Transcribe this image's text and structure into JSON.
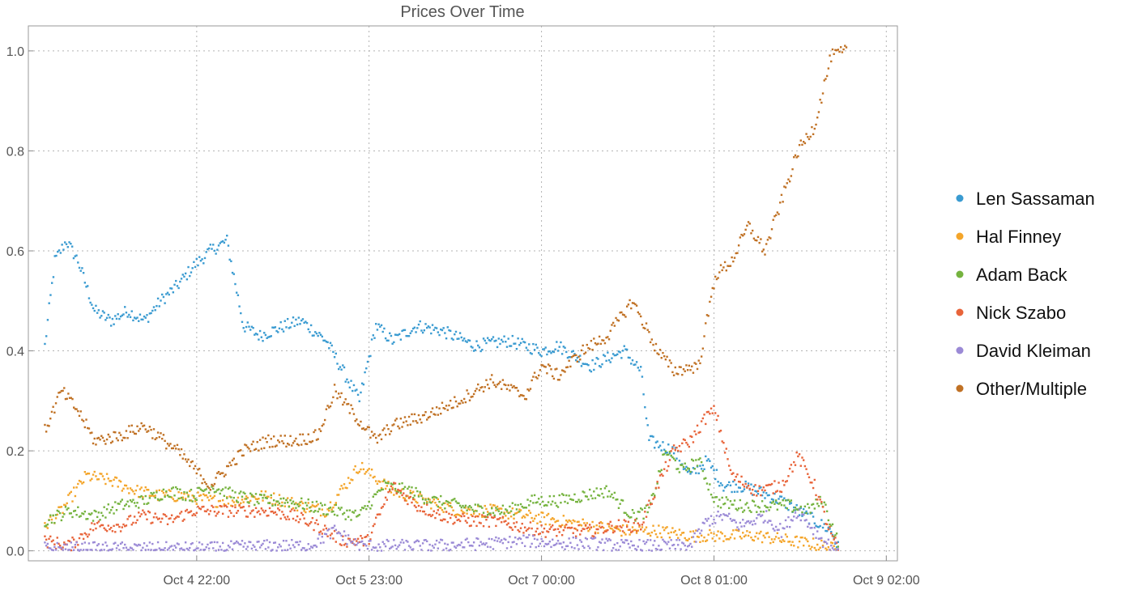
{
  "chart_data": {
    "type": "scatter",
    "title": "Prices Over Time",
    "xlabel": "",
    "ylabel": "",
    "x_range": [
      -0.1,
      4.85
    ],
    "x_unit": "days since Oct 4 00:00",
    "ylim": [
      -0.02,
      1.05
    ],
    "grid": true,
    "legend_position": "right",
    "x_ticks": [
      {
        "label": "Oct 4 22:00",
        "value": 0.917
      },
      {
        "label": "Oct 5 23:00",
        "value": 1.958
      },
      {
        "label": "Oct 7 00:00",
        "value": 3.0
      },
      {
        "label": "Oct 8 01:00",
        "value": 4.042
      },
      {
        "label": "Oct 9 02:00",
        "value": 5.083
      }
    ],
    "y_ticks": [
      "0.0",
      "0.2",
      "0.4",
      "0.6",
      "0.8",
      "1.0"
    ],
    "y_tick_values": [
      0.0,
      0.2,
      0.4,
      0.6,
      0.8,
      1.0
    ],
    "series": [
      {
        "name": "Len Sassaman",
        "color": "#3a9bd1",
        "x": [
          0.0,
          0.06,
          0.13,
          0.2,
          0.3,
          0.4,
          0.5,
          0.6,
          0.7,
          0.8,
          0.9,
          1.0,
          1.1,
          1.2,
          1.3,
          1.45,
          1.55,
          1.7,
          1.8,
          1.9,
          2.0,
          2.1,
          2.25,
          2.4,
          2.6,
          2.8,
          3.0,
          3.1,
          3.3,
          3.5,
          3.6,
          3.65,
          3.8,
          3.9,
          4.0,
          4.1,
          4.2,
          4.3,
          4.45,
          4.6,
          4.75,
          4.8
        ],
        "y": [
          0.41,
          0.58,
          0.62,
          0.58,
          0.48,
          0.46,
          0.48,
          0.46,
          0.5,
          0.53,
          0.57,
          0.6,
          0.62,
          0.45,
          0.43,
          0.45,
          0.46,
          0.42,
          0.36,
          0.3,
          0.45,
          0.42,
          0.45,
          0.44,
          0.41,
          0.42,
          0.4,
          0.41,
          0.37,
          0.4,
          0.36,
          0.22,
          0.2,
          0.15,
          0.18,
          0.13,
          0.13,
          0.12,
          0.1,
          0.07,
          0.04,
          0.0
        ]
      },
      {
        "name": "Hal Finney",
        "color": "#f4a52a",
        "x": [
          0.0,
          0.1,
          0.25,
          0.4,
          0.55,
          0.7,
          0.85,
          1.0,
          1.15,
          1.3,
          1.45,
          1.55,
          1.7,
          1.9,
          2.1,
          2.3,
          2.5,
          2.7,
          2.9,
          3.1,
          3.3,
          3.5,
          3.7,
          3.9,
          4.1,
          4.3,
          4.5,
          4.7,
          4.8
        ],
        "y": [
          0.05,
          0.08,
          0.15,
          0.14,
          0.12,
          0.11,
          0.11,
          0.1,
          0.1,
          0.11,
          0.1,
          0.09,
          0.08,
          0.17,
          0.12,
          0.1,
          0.08,
          0.08,
          0.07,
          0.06,
          0.05,
          0.04,
          0.04,
          0.03,
          0.03,
          0.03,
          0.02,
          0.01,
          0.0
        ]
      },
      {
        "name": "Adam Back",
        "color": "#75b33f",
        "x": [
          0.0,
          0.15,
          0.3,
          0.45,
          0.6,
          0.75,
          0.9,
          1.0,
          1.15,
          1.3,
          1.45,
          1.6,
          1.75,
          1.9,
          2.05,
          2.2,
          2.35,
          2.5,
          2.65,
          2.8,
          2.95,
          3.1,
          3.25,
          3.4,
          3.55,
          3.65,
          3.75,
          3.85,
          3.95,
          4.05,
          4.2,
          4.35,
          4.5,
          4.6,
          4.7,
          4.8
        ],
        "y": [
          0.06,
          0.08,
          0.07,
          0.09,
          0.1,
          0.12,
          0.11,
          0.13,
          0.11,
          0.1,
          0.1,
          0.09,
          0.08,
          0.07,
          0.13,
          0.12,
          0.1,
          0.09,
          0.08,
          0.08,
          0.1,
          0.1,
          0.11,
          0.12,
          0.07,
          0.08,
          0.2,
          0.16,
          0.18,
          0.1,
          0.09,
          0.09,
          0.09,
          0.08,
          0.1,
          0.01
        ]
      },
      {
        "name": "Nick Szabo",
        "color": "#e8643a",
        "x": [
          0.0,
          0.15,
          0.3,
          0.45,
          0.6,
          0.75,
          0.9,
          1.05,
          1.2,
          1.35,
          1.5,
          1.65,
          1.8,
          1.95,
          2.1,
          2.25,
          2.4,
          2.55,
          2.7,
          2.85,
          3.0,
          3.15,
          3.3,
          3.45,
          3.6,
          3.7,
          3.8,
          3.9,
          4.0,
          4.05,
          4.15,
          4.3,
          4.45,
          4.55,
          4.65,
          4.75,
          4.8
        ],
        "y": [
          0.02,
          0.01,
          0.05,
          0.05,
          0.07,
          0.06,
          0.08,
          0.08,
          0.08,
          0.08,
          0.07,
          0.05,
          0.02,
          0.02,
          0.13,
          0.09,
          0.07,
          0.06,
          0.06,
          0.05,
          0.04,
          0.04,
          0.04,
          0.05,
          0.05,
          0.13,
          0.2,
          0.22,
          0.27,
          0.28,
          0.15,
          0.12,
          0.13,
          0.19,
          0.13,
          0.03,
          0.0
        ]
      },
      {
        "name": "David Kleiman",
        "color": "#9b8ad6",
        "x": [
          0.0,
          0.3,
          0.45,
          0.6,
          0.8,
          1.0,
          1.2,
          1.4,
          1.6,
          1.75,
          1.9,
          2.1,
          2.3,
          2.5,
          2.7,
          2.9,
          3.1,
          3.3,
          3.5,
          3.7,
          3.9,
          4.0,
          4.1,
          4.2,
          4.35,
          4.45,
          4.55,
          4.7,
          4.8
        ],
        "y": [
          0.005,
          0.005,
          0.005,
          0.005,
          0.005,
          0.005,
          0.008,
          0.01,
          0.01,
          0.04,
          0.01,
          0.01,
          0.01,
          0.012,
          0.015,
          0.02,
          0.015,
          0.015,
          0.01,
          0.01,
          0.01,
          0.06,
          0.07,
          0.05,
          0.07,
          0.04,
          0.08,
          0.02,
          0.0
        ]
      },
      {
        "name": "Other/Multiple",
        "color": "#c07124",
        "x": [
          0.0,
          0.1,
          0.2,
          0.3,
          0.45,
          0.6,
          0.8,
          1.0,
          1.2,
          1.35,
          1.5,
          1.65,
          1.75,
          1.85,
          2.0,
          2.1,
          2.3,
          2.5,
          2.7,
          2.9,
          3.0,
          3.1,
          3.25,
          3.4,
          3.55,
          3.7,
          3.8,
          3.95,
          4.05,
          4.15,
          4.25,
          4.35,
          4.45,
          4.55,
          4.65,
          4.75,
          4.85
        ],
        "y": [
          0.24,
          0.32,
          0.28,
          0.22,
          0.23,
          0.25,
          0.2,
          0.13,
          0.2,
          0.22,
          0.22,
          0.23,
          0.32,
          0.28,
          0.22,
          0.25,
          0.27,
          0.3,
          0.34,
          0.31,
          0.37,
          0.35,
          0.4,
          0.43,
          0.5,
          0.4,
          0.36,
          0.37,
          0.55,
          0.58,
          0.65,
          0.6,
          0.7,
          0.8,
          0.85,
          0.99,
          1.0
        ]
      }
    ]
  }
}
